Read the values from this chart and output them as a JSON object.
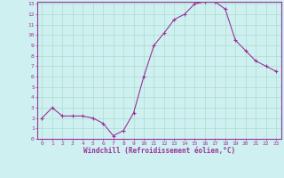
{
  "x": [
    0,
    1,
    2,
    3,
    4,
    5,
    6,
    7,
    8,
    9,
    10,
    11,
    12,
    13,
    14,
    15,
    16,
    17,
    18,
    19,
    20,
    21,
    22,
    23
  ],
  "y": [
    2.0,
    3.0,
    2.2,
    2.2,
    2.2,
    2.0,
    1.5,
    0.3,
    0.8,
    2.5,
    6.0,
    9.0,
    10.2,
    11.5,
    12.0,
    13.0,
    13.2,
    13.2,
    12.5,
    9.5,
    8.5,
    7.5,
    7.0,
    6.5
  ],
  "line_color": "#993399",
  "marker": "+",
  "bg_color": "#cff0f0",
  "grid_color": "#aaddcc",
  "xlabel": "Windchill (Refroidissement éolien,°C)",
  "xlabel_color": "#993399",
  "tick_color": "#993399",
  "ylim": [
    0,
    13
  ],
  "xlim": [
    -0.5,
    23.5
  ],
  "yticks": [
    0,
    1,
    2,
    3,
    4,
    5,
    6,
    7,
    8,
    9,
    10,
    11,
    12,
    13
  ],
  "xticks": [
    0,
    1,
    2,
    3,
    4,
    5,
    6,
    7,
    8,
    9,
    10,
    11,
    12,
    13,
    14,
    15,
    16,
    17,
    18,
    19,
    20,
    21,
    22,
    23
  ],
  "border_color": "#993399",
  "spine_color": "#993399"
}
